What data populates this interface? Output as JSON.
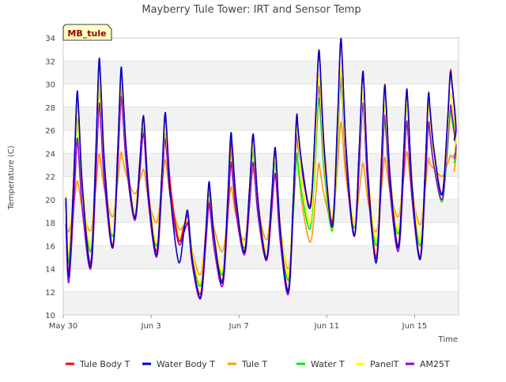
{
  "chart_data": {
    "type": "line",
    "title": "Mayberry Tule Tower: IRT and Sensor Temp",
    "xlabel": "Time",
    "ylabel": "Temperature (C)",
    "station_label": "MB_tule",
    "x_unit": "days since May 30",
    "xlim": [
      0,
      18
    ],
    "ylim": [
      10,
      34
    ],
    "yticks": [
      10,
      12,
      14,
      16,
      18,
      20,
      22,
      24,
      26,
      28,
      30,
      32,
      34
    ],
    "xticks": [
      {
        "value": 0,
        "label": "May 30"
      },
      {
        "value": 4,
        "label": "Jun 3"
      },
      {
        "value": 8,
        "label": "Jun 7"
      },
      {
        "value": 12,
        "label": "Jun 11"
      },
      {
        "value": 16,
        "label": "Jun 15"
      }
    ],
    "grid": true,
    "legend_position": "bottom",
    "daily_minmax": {
      "days": [
        0.5,
        1.5,
        2.5,
        3.5,
        4.5,
        5.5,
        6.5,
        7.5,
        8.5,
        9.5,
        10.5,
        11.5,
        12.5,
        13.5,
        14.5,
        15.5,
        16.5,
        17.5
      ],
      "series": [
        {
          "name": "Tule Body T",
          "color": "#ff0000",
          "mins": [
            13.5,
            14.5,
            16.0,
            18.5,
            15.5,
            16.5,
            11.8,
            13.0,
            15.5,
            15.0,
            12.2,
            19.5,
            18.0,
            17.0,
            15.0,
            16.0,
            15.0,
            20.5
          ],
          "maxs": [
            28.8,
            31.6,
            30.9,
            27.0,
            27.0,
            18.5,
            21.0,
            24.8,
            25.3,
            24.0,
            27.0,
            32.6,
            33.5,
            30.6,
            29.6,
            29.0,
            29.0,
            31.0
          ]
        },
        {
          "name": "Water Body T",
          "color": "#0000cc",
          "mins": [
            13.3,
            14.2,
            15.8,
            18.4,
            15.2,
            14.6,
            11.5,
            12.8,
            15.4,
            14.8,
            12.0,
            19.3,
            17.6,
            16.8,
            14.5,
            15.8,
            14.8,
            20.4
          ],
          "maxs": [
            29.0,
            31.8,
            31.1,
            26.9,
            27.2,
            18.9,
            21.3,
            25.5,
            25.4,
            24.2,
            27.1,
            32.5,
            33.5,
            30.7,
            29.5,
            29.2,
            28.9,
            30.8
          ]
        },
        {
          "name": "Tule T",
          "color": "#ff9900",
          "mins": [
            17.2,
            17.3,
            18.5,
            20.5,
            18.0,
            17.5,
            13.5,
            15.5,
            16.5,
            16.5,
            14.0,
            16.3,
            18.2,
            18.0,
            17.2,
            18.5,
            17.8,
            22.0
          ],
          "maxs": [
            21.5,
            23.8,
            24.0,
            22.5,
            23.3,
            18.0,
            19.8,
            21.0,
            22.5,
            22.0,
            23.5,
            23.0,
            26.5,
            23.0,
            23.5,
            24.0,
            23.5,
            23.8
          ]
        },
        {
          "name": "Water T",
          "color": "#00ee00",
          "mins": [
            14.5,
            15.5,
            16.8,
            19.0,
            16.0,
            16.5,
            12.5,
            13.5,
            15.8,
            15.5,
            13.0,
            17.5,
            17.3,
            17.5,
            16.0,
            17.0,
            16.0,
            19.8
          ],
          "maxs": [
            27.0,
            29.5,
            29.5,
            26.0,
            25.5,
            18.5,
            20.5,
            24.0,
            24.0,
            23.0,
            23.8,
            28.5,
            30.0,
            28.0,
            26.5,
            26.5,
            26.5,
            27.5
          ]
        },
        {
          "name": "PanelT",
          "color": "#ffff00",
          "mins": [
            15.5,
            16.0,
            17.0,
            19.0,
            16.2,
            16.8,
            12.8,
            13.8,
            16.0,
            15.5,
            13.5,
            18.0,
            17.5,
            17.8,
            16.5,
            17.3,
            16.5,
            20.5
          ],
          "maxs": [
            27.5,
            30.0,
            30.0,
            26.5,
            26.0,
            18.5,
            20.8,
            24.5,
            24.5,
            23.5,
            26.0,
            30.4,
            31.0,
            29.0,
            28.0,
            28.0,
            28.0,
            29.0
          ]
        },
        {
          "name": "AM25T",
          "color": "#9900cc",
          "mins": [
            12.8,
            14.0,
            15.8,
            18.2,
            15.0,
            16.2,
            11.4,
            12.5,
            15.2,
            14.7,
            11.8,
            19.5,
            17.8,
            16.8,
            14.8,
            15.5,
            14.8,
            20.0
          ],
          "maxs": [
            25.0,
            28.0,
            28.6,
            25.5,
            25.0,
            17.8,
            19.5,
            23.0,
            23.0,
            22.0,
            25.5,
            29.5,
            30.5,
            28.0,
            27.0,
            26.5,
            26.5,
            28.0
          ]
        }
      ]
    }
  }
}
